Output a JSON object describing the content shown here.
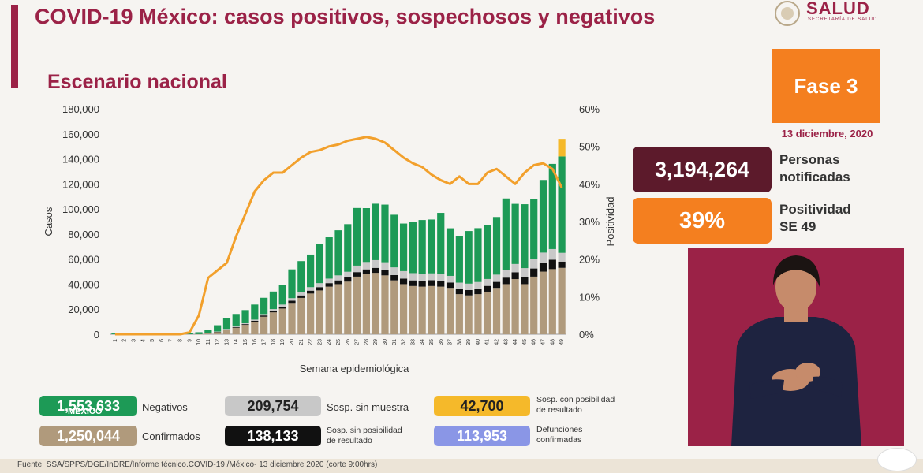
{
  "header": {
    "title": "COVID-19 México: casos positivos, sospechosos y negativos",
    "subtitle": "Escenario nacional"
  },
  "logo": {
    "name": "SALUD",
    "secretaria": "SECRETARÍA DE SALUD",
    "icon": "seal-icon"
  },
  "fase": "Fase 3",
  "date": "13 diciembre, 2020",
  "stats": {
    "personas_value": "3,194,264",
    "personas_label_1": "Personas",
    "personas_label_2": "notificadas",
    "positividad_value": "39%",
    "positividad_label_1": "Positividad",
    "positividad_label_2": "SE 49"
  },
  "legend": {
    "negativos_value": "1,553,633",
    "negativos_label": "Negativos",
    "confirmados_value": "1,250,044",
    "confirmados_label": "Confirmados",
    "sosp_sin_muestra_value": "209,754",
    "sosp_sin_muestra_label": "Sosp. sin muestra",
    "sosp_sin_posib_value": "138,133",
    "sosp_sin_posib_label_1": "Sosp. sin posibilidad",
    "sosp_sin_posib_label_2": "de resultado",
    "sosp_con_posib_value": "42,700",
    "sosp_con_posib_label_1": "Sosp. con posibilidad",
    "sosp_con_posib_label_2": "de resultado",
    "defunciones_value": "113,953",
    "defunciones_label_1": "Defunciones",
    "defunciones_label_2": "confirmadas",
    "mexico_tag": "MÉXICO"
  },
  "footer": "Fuente: SSA/SPPS/DGE/InDRE/Informe técnico.COVID-19 /México- 13 diciembre 2020 (corte 9:00hrs)",
  "colors": {
    "confirmados": "#b09a7c",
    "sosp_sin_posib": "#111111",
    "sosp_sin_muestra": "#c8c8c8",
    "negativos": "#1d9a56",
    "sosp_con_posib": "#f5b92a",
    "positividad": "#f2a02c",
    "brand": "#9b2247"
  },
  "chart_data": {
    "type": "bar",
    "xlabel": "Semana epidemiológica",
    "ylabel": "Casos",
    "y2label": "Positividad",
    "ylim": [
      0,
      180000
    ],
    "y2lim": [
      0,
      60
    ],
    "yticks": [
      "0",
      "20,000",
      "40,000",
      "60,000",
      "80,000",
      "100,000",
      "120,000",
      "140,000",
      "160,000",
      "180,000"
    ],
    "y2ticks": [
      "0%",
      "10%",
      "20%",
      "30%",
      "40%",
      "50%",
      "60%"
    ],
    "categories": [
      "1",
      "2",
      "3",
      "4",
      "5",
      "6",
      "7",
      "8",
      "9",
      "10",
      "11",
      "12",
      "13",
      "14",
      "15",
      "16",
      "17",
      "18",
      "19",
      "20",
      "21",
      "22",
      "23",
      "24",
      "25",
      "26",
      "27",
      "28",
      "29",
      "30",
      "31",
      "32",
      "33",
      "34",
      "35",
      "36",
      "37",
      "38",
      "39",
      "40",
      "41",
      "42",
      "43",
      "44",
      "45",
      "46",
      "47",
      "48",
      "49"
    ],
    "series": [
      {
        "name": "Confirmados",
        "values": [
          0,
          0,
          0,
          0,
          0,
          0,
          0,
          0,
          0,
          100,
          700,
          1800,
          3500,
          5200,
          7500,
          10000,
          14000,
          17500,
          20500,
          25000,
          29000,
          32500,
          35000,
          38000,
          40000,
          42000,
          46000,
          48000,
          49000,
          47000,
          43000,
          40000,
          38500,
          38000,
          38500,
          38000,
          37000,
          32000,
          31000,
          32000,
          34000,
          37000,
          40000,
          44000,
          40000,
          46000,
          50000,
          52000,
          53000
        ]
      },
      {
        "name": "Sosp. sin posibilidad de resultado",
        "values": [
          0,
          0,
          0,
          0,
          0,
          0,
          0,
          0,
          0,
          0,
          0,
          200,
          400,
          500,
          600,
          800,
          1000,
          1200,
          1500,
          1800,
          2000,
          2300,
          2600,
          2800,
          3000,
          3300,
          3600,
          3800,
          4000,
          4100,
          4200,
          4400,
          4500,
          4600,
          4600,
          4500,
          4300,
          4200,
          4300,
          4400,
          4600,
          4800,
          5200,
          5500,
          5800,
          6500,
          7200,
          7500,
          5000
        ]
      },
      {
        "name": "Sosp. sin muestra",
        "values": [
          0,
          0,
          0,
          0,
          0,
          0,
          0,
          0,
          0,
          0,
          0,
          200,
          400,
          500,
          700,
          900,
          1100,
          1400,
          1700,
          2000,
          2400,
          2800,
          3200,
          3600,
          4000,
          4600,
          5200,
          5900,
          6200,
          6400,
          6200,
          6000,
          5800,
          5600,
          5500,
          5400,
          5300,
          5000,
          5100,
          5300,
          5500,
          5800,
          6200,
          6600,
          7000,
          7500,
          8000,
          8500,
          7000
        ]
      },
      {
        "name": "Negativos",
        "values": [
          600,
          700,
          800,
          900,
          900,
          900,
          900,
          900,
          900,
          1500,
          2800,
          5000,
          8500,
          10000,
          10500,
          12000,
          13000,
          14000,
          15500,
          23000,
          25000,
          26000,
          31000,
          33000,
          36000,
          38000,
          46000,
          43000,
          45000,
          46000,
          42000,
          38000,
          41000,
          43000,
          43000,
          49000,
          38000,
          37000,
          42000,
          43000,
          43000,
          46000,
          57000,
          48000,
          51000,
          48000,
          58000,
          68000,
          77000
        ]
      },
      {
        "name": "Sosp. con posibilidad de resultado",
        "values": [
          0,
          0,
          0,
          0,
          0,
          0,
          0,
          0,
          0,
          0,
          0,
          0,
          0,
          0,
          0,
          0,
          0,
          0,
          0,
          0,
          0,
          0,
          0,
          0,
          0,
          0,
          0,
          0,
          0,
          0,
          0,
          0,
          0,
          0,
          0,
          0,
          0,
          0,
          0,
          0,
          0,
          0,
          0,
          0,
          0,
          0,
          0,
          0,
          14000
        ]
      }
    ],
    "line": {
      "name": "Positividad",
      "values": [
        0,
        0,
        0,
        0,
        0,
        0,
        0,
        0,
        0.5,
        5,
        15,
        17,
        19,
        26,
        32,
        38,
        41,
        43,
        43,
        45,
        47,
        48.5,
        49,
        50,
        50.5,
        51.5,
        52,
        52.5,
        52,
        51,
        49,
        47,
        45.5,
        44.5,
        42.5,
        41,
        40,
        42,
        40,
        40,
        43,
        44,
        42,
        40,
        43,
        45,
        45.5,
        44,
        39
      ]
    }
  }
}
